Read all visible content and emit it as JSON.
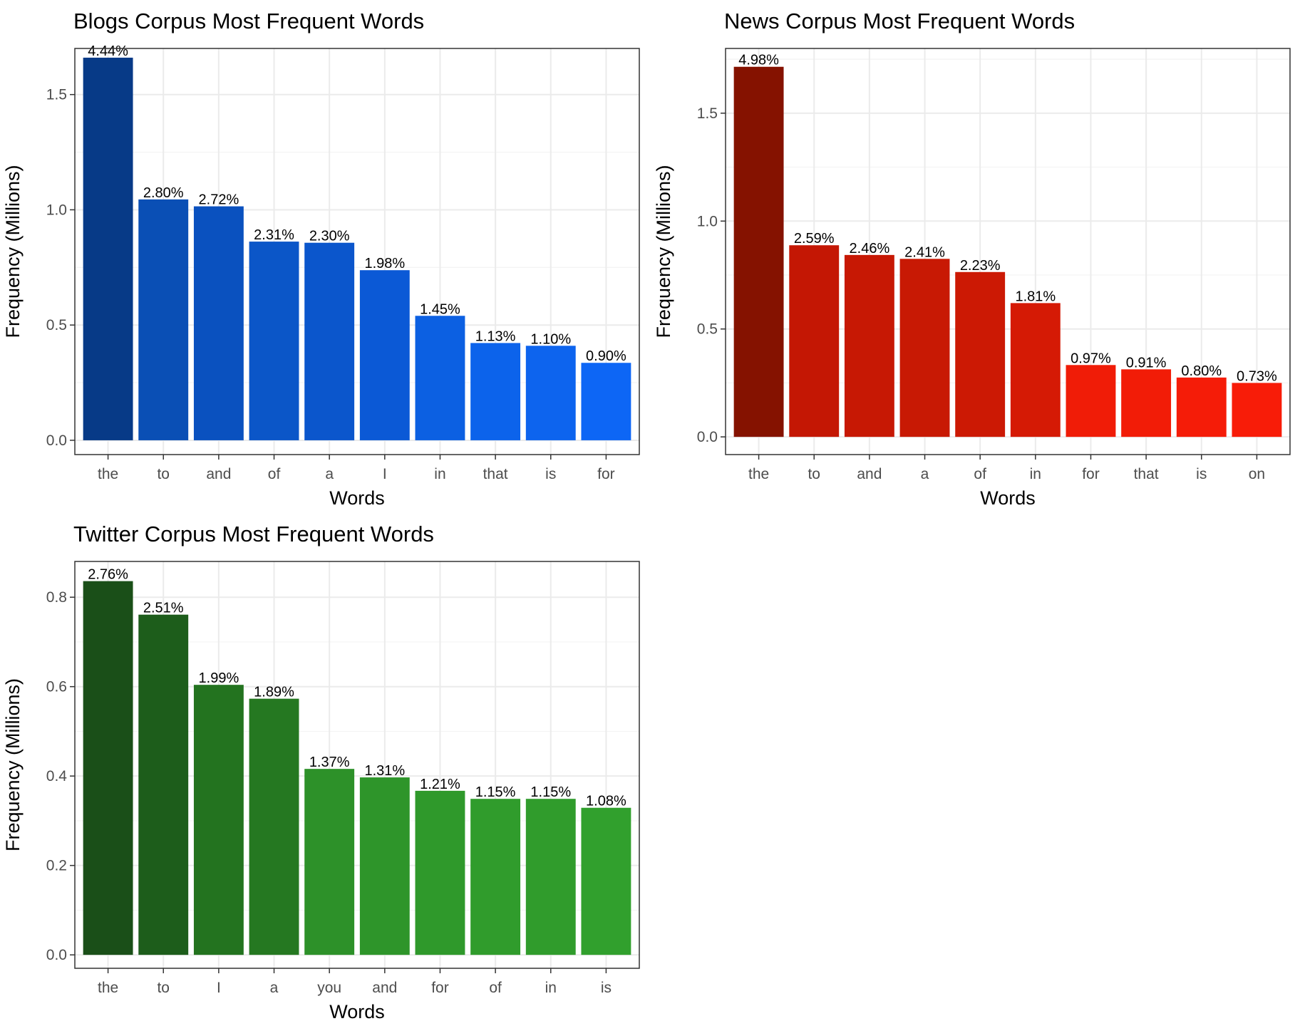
{
  "chart_data": [
    {
      "type": "bar",
      "title": "Blogs Corpus Most Frequent Words",
      "xlabel": "Words",
      "ylabel": "Frequency (Millions)",
      "categories": [
        "the",
        "to",
        "and",
        "of",
        "a",
        "I",
        "in",
        "that",
        "is",
        "for"
      ],
      "values": [
        1.66,
        1.045,
        1.015,
        0.862,
        0.857,
        0.738,
        0.54,
        0.422,
        0.41,
        0.336
      ],
      "labels": [
        "4.44%",
        "2.80%",
        "2.72%",
        "2.31%",
        "2.30%",
        "1.98%",
        "1.45%",
        "1.13%",
        "1.10%",
        "0.90%"
      ],
      "colors": [
        "#073a87",
        "#0a4fb5",
        "#0a51bf",
        "#0b56c8",
        "#0b56cc",
        "#0b59d6",
        "#0c60e2",
        "#0c63eb",
        "#0d64ee",
        "#0d66f5"
      ],
      "yticks": [
        "0.0",
        "0.5",
        "1.0",
        "1.5"
      ],
      "ylim": [
        -0.062,
        1.7
      ],
      "grid": true
    },
    {
      "type": "bar",
      "title": "News Corpus Most Frequent Words",
      "xlabel": "Words",
      "ylabel": "Frequency (Millions)",
      "categories": [
        "the",
        "to",
        "and",
        "a",
        "of",
        "in",
        "for",
        "that",
        "is",
        "on"
      ],
      "values": [
        1.715,
        0.888,
        0.843,
        0.825,
        0.764,
        0.62,
        0.333,
        0.313,
        0.275,
        0.25
      ],
      "labels": [
        "4.98%",
        "2.59%",
        "2.46%",
        "2.41%",
        "2.23%",
        "1.81%",
        "0.97%",
        "0.91%",
        "0.80%",
        "0.73%"
      ],
      "colors": [
        "#851200",
        "#c41704",
        "#c71804",
        "#c81904",
        "#cc1904",
        "#d51a05",
        "#f01c07",
        "#f21c07",
        "#f51c08",
        "#f81c08"
      ],
      "yticks": [
        "0.0",
        "0.5",
        "1.0",
        "1.5"
      ],
      "ylim": [
        -0.082,
        1.8
      ],
      "grid": true
    },
    {
      "type": "bar",
      "title": "Twitter Corpus Most Frequent Words",
      "xlabel": "Words",
      "ylabel": "Frequency (Millions)",
      "categories": [
        "the",
        "to",
        "I",
        "a",
        "you",
        "and",
        "for",
        "of",
        "in",
        "is"
      ],
      "values": [
        0.836,
        0.761,
        0.604,
        0.573,
        0.416,
        0.397,
        0.367,
        0.349,
        0.349,
        0.329
      ],
      "labels": [
        "2.76%",
        "2.51%",
        "1.99%",
        "1.89%",
        "1.37%",
        "1.31%",
        "1.21%",
        "1.15%",
        "1.15%",
        "1.08%"
      ],
      "colors": [
        "#1a4f18",
        "#1d5d1b",
        "#23731f",
        "#257821",
        "#2d9129",
        "#2e952a",
        "#2f992b",
        "#309c2c",
        "#309c2c",
        "#31a02d"
      ],
      "yticks": [
        "0.0",
        "0.2",
        "0.4",
        "0.6",
        "0.8"
      ],
      "ylim": [
        -0.03,
        0.88
      ],
      "grid": true
    }
  ]
}
